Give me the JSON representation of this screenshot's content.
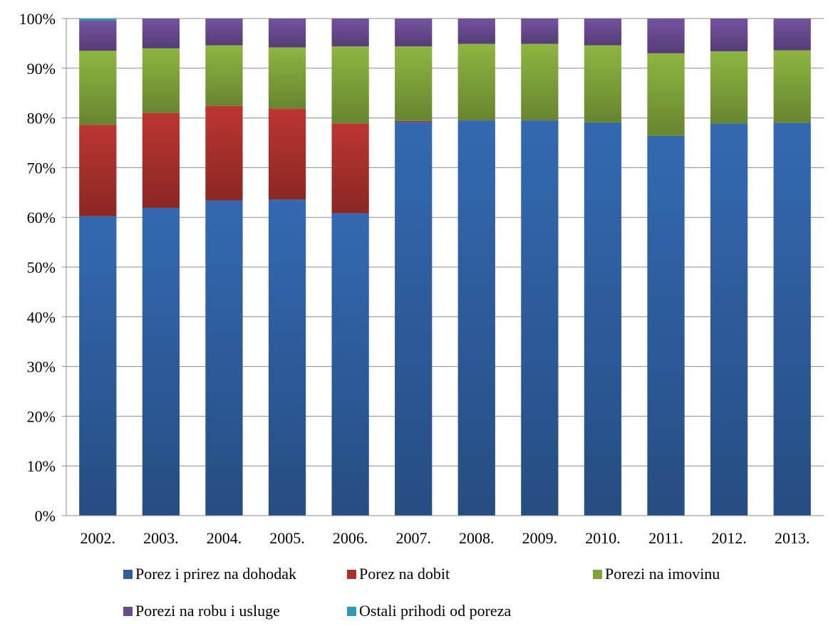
{
  "chart_data": {
    "type": "bar",
    "stacked": true,
    "percent": true,
    "title": "",
    "xlabel": "",
    "ylabel": "",
    "ylim": [
      0,
      100
    ],
    "yticks": [
      "0%",
      "10%",
      "20%",
      "30%",
      "40%",
      "50%",
      "60%",
      "70%",
      "80%",
      "90%",
      "100%"
    ],
    "categories": [
      "2002.",
      "2003.",
      "2004.",
      "2005.",
      "2006.",
      "2007.",
      "2008.",
      "2009.",
      "2010.",
      "2011.",
      "2012.",
      "2013."
    ],
    "grid": true,
    "legend_position": "bottom",
    "series": [
      {
        "name": "Porez i prirez na dohodak",
        "color": "#2E5E9E",
        "values": [
          60.2,
          61.9,
          63.4,
          63.6,
          60.8,
          79.2,
          79.5,
          79.5,
          79.1,
          76.4,
          78.9,
          79.0
        ]
      },
      {
        "name": "Porez na dobit",
        "color": "#A8302D",
        "values": [
          18.4,
          19.1,
          19.0,
          18.3,
          18.1,
          0.2,
          0.0,
          0.0,
          0.0,
          0.0,
          0.0,
          0.0
        ]
      },
      {
        "name": "Porezi na imovinu",
        "color": "#7FA23A",
        "values": [
          14.9,
          13.0,
          12.2,
          12.3,
          15.5,
          15.0,
          15.4,
          15.4,
          15.5,
          16.6,
          14.5,
          14.6
        ]
      },
      {
        "name": "Porezi na robu i usluge",
        "color": "#684A8F",
        "values": [
          6.1,
          6.0,
          5.4,
          5.8,
          5.6,
          5.6,
          5.1,
          5.1,
          5.4,
          7.0,
          6.6,
          6.4
        ]
      },
      {
        "name": "Ostali prihodi od poreza",
        "color": "#2E9BB5",
        "values": [
          0.4,
          0.0,
          0.0,
          0.0,
          0.0,
          0.0,
          0.0,
          0.0,
          0.0,
          0.0,
          0.0,
          0.0
        ]
      }
    ]
  }
}
